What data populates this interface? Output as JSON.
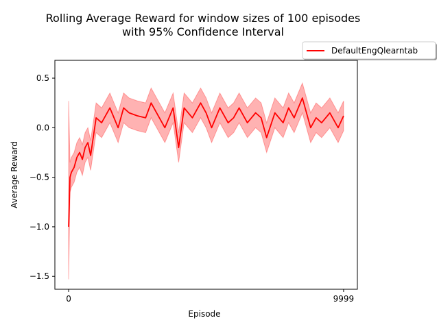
{
  "chart_data": {
    "type": "line",
    "title_lines": [
      "Rolling Average Reward for window sizes of 100 episodes",
      "with 95% Confidence Interval"
    ],
    "xlabel": "Episode",
    "ylabel": "Average Reward",
    "xlim": [
      -500,
      10500
    ],
    "ylim": [
      -1.63,
      0.68
    ],
    "x_ticks": [
      {
        "value": 0,
        "label": "0"
      },
      {
        "value": 9999,
        "label": "9999"
      }
    ],
    "y_ticks": [
      {
        "value": 0.5,
        "label": "0.5"
      },
      {
        "value": 0.0,
        "label": "0.0"
      },
      {
        "value": -0.5,
        "label": "−0.5"
      },
      {
        "value": -1.0,
        "label": "−1.0"
      },
      {
        "value": -1.5,
        "label": "−1.5"
      }
    ],
    "legend": {
      "placement": "outside-top-right",
      "entries": [
        {
          "name": "DefaultEngQlearntab",
          "color": "#ff0000"
        }
      ]
    },
    "series": [
      {
        "name": "DefaultEngQlearntab",
        "color": "#ff0000",
        "band_color": "#ff0000",
        "band_opacity": 0.3,
        "x": [
          0,
          50,
          100,
          200,
          300,
          400,
          500,
          600,
          700,
          800,
          1000,
          1200,
          1500,
          1800,
          2000,
          2200,
          2500,
          2800,
          3000,
          3200,
          3500,
          3800,
          4000,
          4200,
          4500,
          4800,
          5000,
          5200,
          5500,
          5800,
          6000,
          6200,
          6500,
          6800,
          7000,
          7200,
          7500,
          7800,
          8000,
          8200,
          8500,
          8800,
          9000,
          9200,
          9500,
          9800,
          9999
        ],
        "y": [
          -1.0,
          -0.5,
          -0.45,
          -0.4,
          -0.3,
          -0.25,
          -0.32,
          -0.2,
          -0.15,
          -0.28,
          0.1,
          0.05,
          0.2,
          0.0,
          0.2,
          0.15,
          0.12,
          0.1,
          0.25,
          0.15,
          0.0,
          0.2,
          -0.2,
          0.2,
          0.1,
          0.25,
          0.15,
          0.0,
          0.2,
          0.05,
          0.1,
          0.2,
          0.05,
          0.15,
          0.1,
          -0.1,
          0.15,
          0.05,
          0.2,
          0.1,
          0.3,
          0.0,
          0.1,
          0.05,
          0.15,
          0.0,
          0.12
        ],
        "lower": [
          -1.53,
          -0.65,
          -0.6,
          -0.55,
          -0.45,
          -0.4,
          -0.48,
          -0.35,
          -0.3,
          -0.43,
          -0.05,
          -0.1,
          0.05,
          -0.15,
          0.05,
          0.0,
          -0.03,
          -0.05,
          0.1,
          0.0,
          -0.15,
          0.05,
          -0.35,
          0.05,
          -0.05,
          0.1,
          0.0,
          -0.15,
          0.05,
          -0.1,
          -0.05,
          0.05,
          -0.1,
          0.0,
          -0.05,
          -0.25,
          0.0,
          -0.1,
          0.05,
          -0.05,
          0.15,
          -0.15,
          -0.05,
          -0.1,
          0.0,
          -0.15,
          -0.03
        ],
        "upper": [
          0.27,
          -0.35,
          -0.3,
          -0.25,
          -0.15,
          -0.1,
          -0.17,
          -0.05,
          0.0,
          -0.13,
          0.25,
          0.2,
          0.35,
          0.15,
          0.35,
          0.3,
          0.27,
          0.25,
          0.4,
          0.3,
          0.15,
          0.35,
          -0.05,
          0.35,
          0.25,
          0.4,
          0.3,
          0.15,
          0.35,
          0.2,
          0.25,
          0.35,
          0.2,
          0.3,
          0.25,
          0.05,
          0.3,
          0.2,
          0.35,
          0.25,
          0.45,
          0.15,
          0.25,
          0.2,
          0.3,
          0.15,
          0.27
        ]
      }
    ]
  }
}
